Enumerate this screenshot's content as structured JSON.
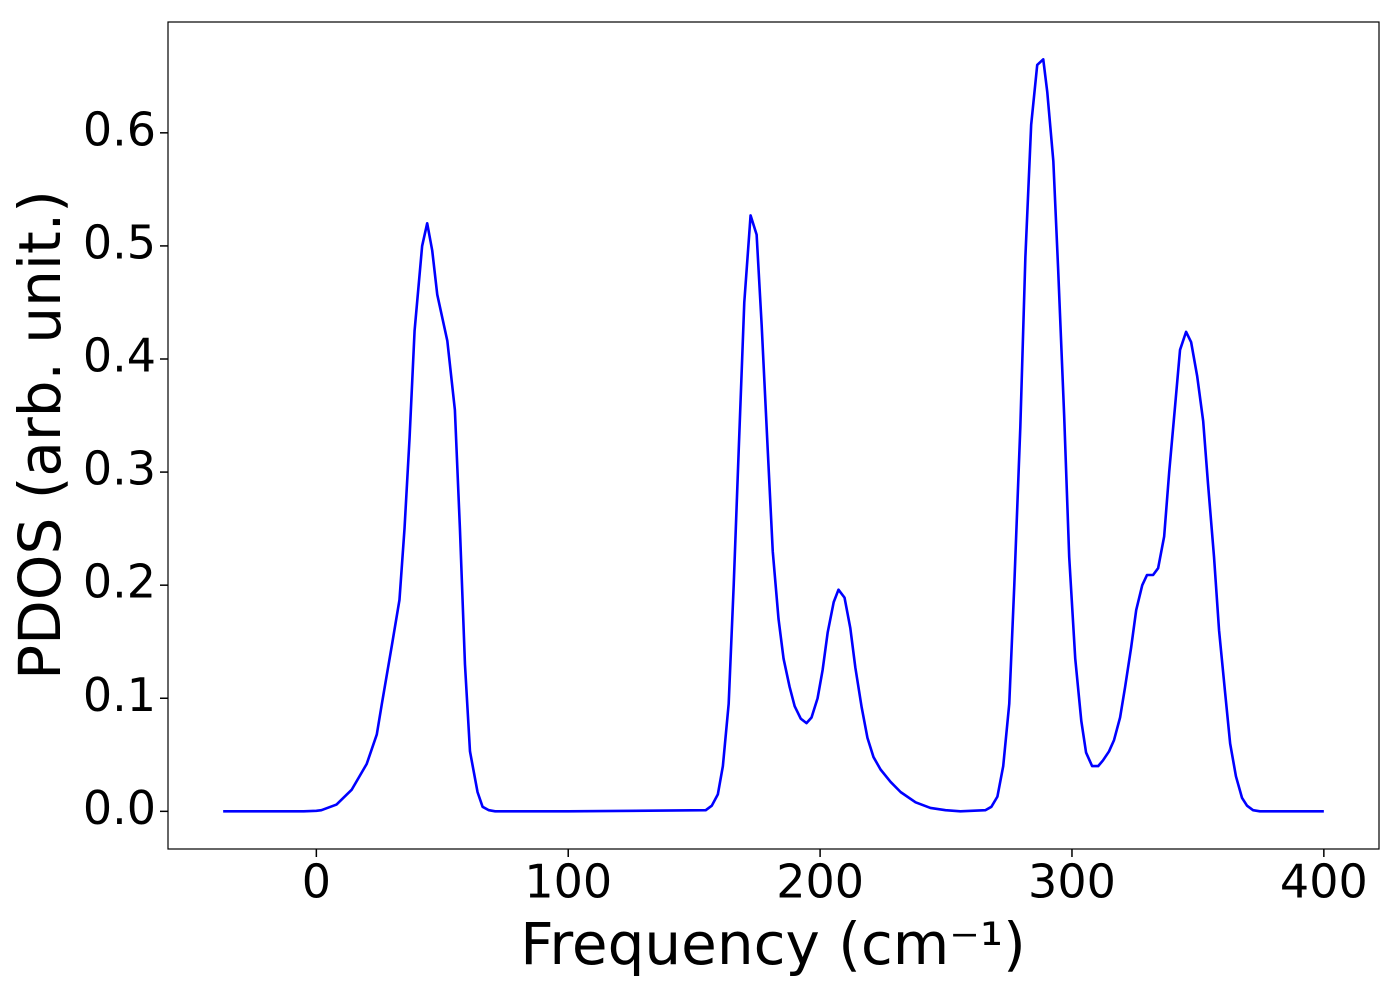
{
  "chart_data": {
    "type": "line",
    "xlabel": "Frequency (cm⁻¹)",
    "ylabel": "PDOS (arb. unit.)",
    "x": [
      -37,
      -20,
      -5,
      0,
      2,
      8,
      14,
      20,
      24,
      26,
      30,
      33,
      35,
      37,
      39,
      42,
      44,
      46,
      48,
      52,
      55,
      57,
      59,
      61,
      64,
      66,
      68.5,
      71,
      100,
      154.6,
      157,
      159.4,
      161.4,
      163.7,
      165.7,
      167.7,
      169.9,
      172.4,
      174.8,
      176.8,
      179.2,
      181.2,
      183.5,
      185.5,
      187.9,
      189.9,
      192.3,
      194.6,
      196.6,
      199,
      201,
      203,
      205.4,
      207.3,
      209.7,
      212,
      214,
      216.5,
      218.8,
      221.2,
      224,
      228,
      232,
      237.9,
      243.8,
      249.8,
      255.7,
      265.6,
      268,
      270.4,
      272.7,
      275.1,
      277.1,
      279.5,
      281.5,
      283.8,
      286.2,
      288.6,
      290.2,
      292.6,
      294.5,
      296.9,
      298.9,
      301.3,
      303.7,
      305.6,
      308,
      310.4,
      312.3,
      314.7,
      316.7,
      319.1,
      321.1,
      323.5,
      325.5,
      327.9,
      329.8,
      332.2,
      334.2,
      336.6,
      338.6,
      341,
      342.9,
      345.3,
      347.3,
      349.7,
      352.1,
      354,
      356.4,
      358.4,
      360.8,
      362.8,
      365.1,
      367.5,
      369.5,
      371.9,
      374.6,
      400
    ],
    "series": [
      {
        "name": "PDOS",
        "color": "#0000ff",
        "values": [
          0,
          0,
          0,
          0.0005,
          0.001,
          0.006,
          0.019,
          0.042,
          0.068,
          0.095,
          0.147,
          0.187,
          0.25,
          0.33,
          0.425,
          0.5,
          0.52,
          0.496,
          0.457,
          0.416,
          0.355,
          0.25,
          0.13,
          0.053,
          0.017,
          0.004,
          0.001,
          0,
          0,
          0.001,
          0.005,
          0.015,
          0.04,
          0.095,
          0.2,
          0.32,
          0.45,
          0.527,
          0.51,
          0.43,
          0.32,
          0.23,
          0.17,
          0.135,
          0.11,
          0.093,
          0.082,
          0.078,
          0.083,
          0.1,
          0.125,
          0.158,
          0.185,
          0.196,
          0.189,
          0.162,
          0.127,
          0.092,
          0.065,
          0.048,
          0.037,
          0.026,
          0.017,
          0.008,
          0.003,
          0.001,
          0,
          0.001,
          0.004,
          0.013,
          0.04,
          0.095,
          0.2,
          0.34,
          0.49,
          0.607,
          0.66,
          0.665,
          0.636,
          0.575,
          0.48,
          0.35,
          0.225,
          0.135,
          0.08,
          0.052,
          0.04,
          0.04,
          0.045,
          0.053,
          0.063,
          0.083,
          0.11,
          0.145,
          0.178,
          0.2,
          0.209,
          0.209,
          0.215,
          0.243,
          0.3,
          0.36,
          0.408,
          0.424,
          0.415,
          0.385,
          0.345,
          0.29,
          0.225,
          0.16,
          0.105,
          0.06,
          0.031,
          0.012,
          0.005,
          0.001,
          0,
          0
        ]
      }
    ],
    "xlim": [
      -58.9,
      421.9
    ],
    "ylim": [
      -0.0333,
      0.698
    ],
    "xticks": [
      0,
      100,
      200,
      300,
      400
    ],
    "yticks": [
      {
        "value": 0,
        "label": "0.0"
      },
      0.1,
      0.2,
      0.3,
      0.4,
      0.5,
      0.6
    ]
  }
}
